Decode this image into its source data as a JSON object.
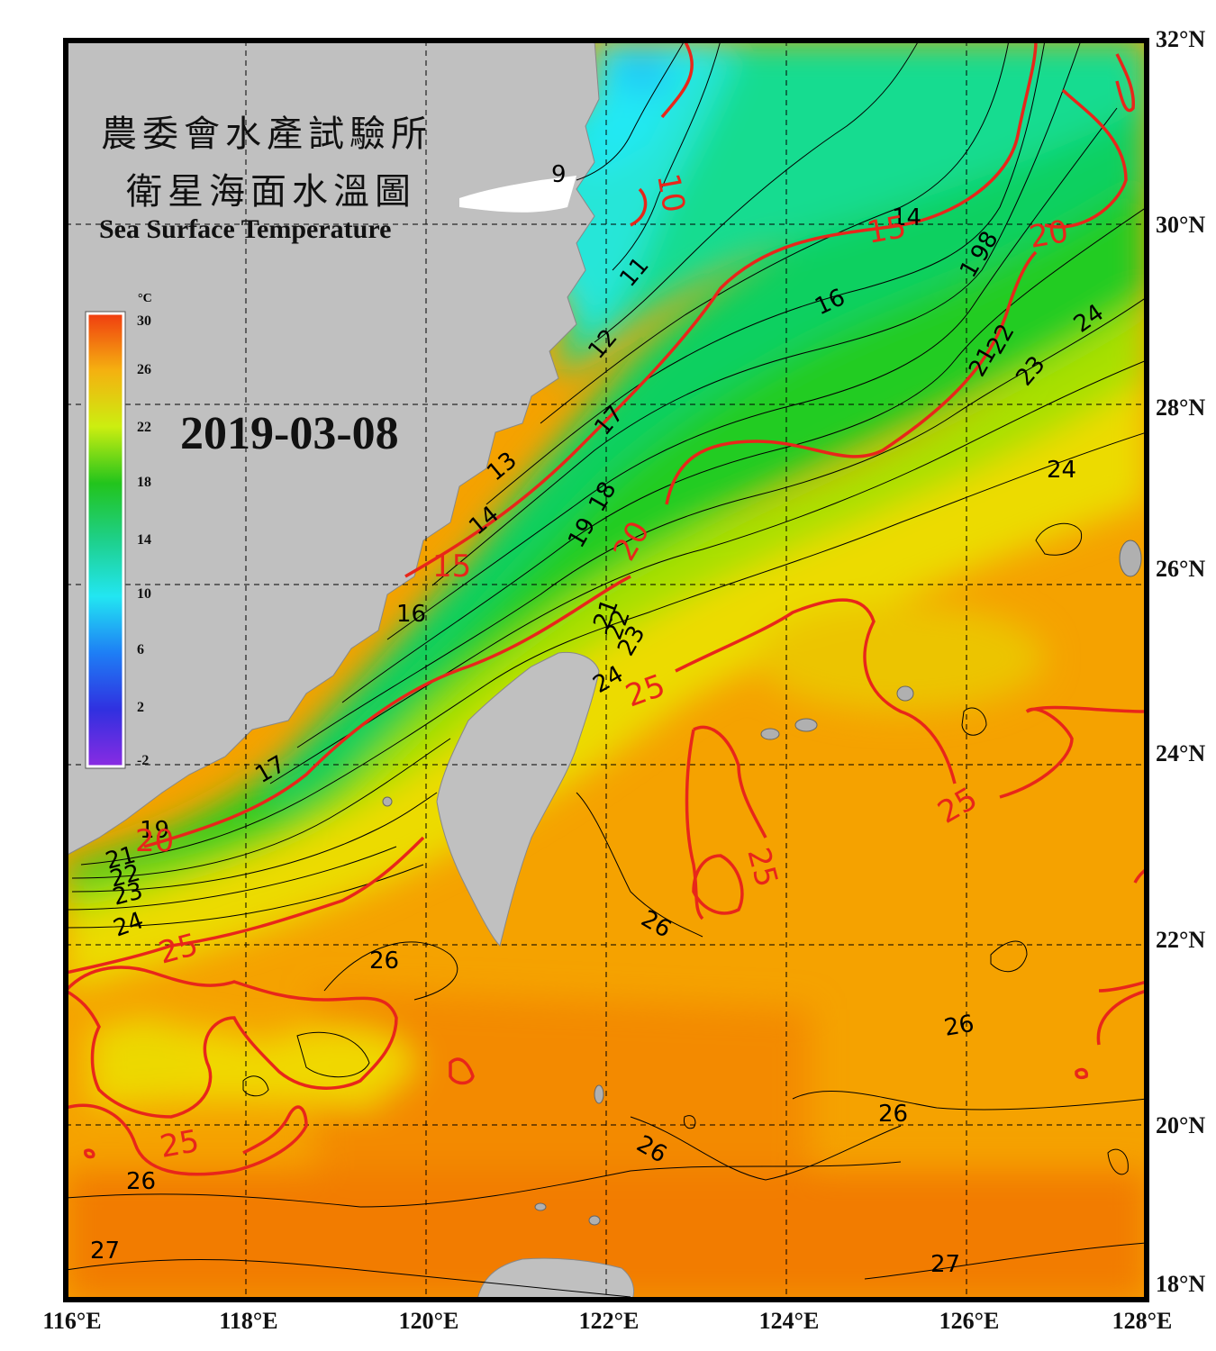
{
  "title": {
    "chinese_line1": "農委會水產試驗所",
    "chinese_line2": "衛星海面水溫圖",
    "english": "Sea Surface Temperature"
  },
  "date": "2019-03-08",
  "colorbar": {
    "unit": "°C",
    "ticks": [
      "30",
      "26",
      "22",
      "18",
      "14",
      "10",
      "6",
      "2",
      "-2"
    ],
    "min": -2,
    "max": 30
  },
  "axes": {
    "longitude_labels": [
      "116°E",
      "118°E",
      "120°E",
      "122°E",
      "124°E",
      "126°E",
      "128°E"
    ],
    "latitude_labels": [
      "32°N",
      "30°N",
      "28°N",
      "26°N",
      "24°N",
      "22°N",
      "20°N",
      "18°N"
    ],
    "lon_range": [
      116,
      128
    ],
    "lat_range": [
      18,
      32
    ],
    "grid": "dashed"
  },
  "contour_labels": {
    "black": [
      "9",
      "11",
      "12",
      "13",
      "14",
      "14",
      "16",
      "16",
      "17",
      "17",
      "18",
      "19",
      "19",
      "1",
      "98",
      "21",
      "21",
      "22",
      "22",
      "23",
      "23",
      "23",
      "24",
      "24",
      "24",
      "24",
      "26",
      "26",
      "26",
      "26",
      "26",
      "26",
      "27",
      "27",
      "21",
      "22"
    ],
    "red": [
      "10",
      "15",
      "15",
      "20",
      "20",
      "20",
      "25",
      "25",
      "25",
      "25",
      "25"
    ]
  },
  "colors": {
    "land": "#c0c0c0",
    "frame": "#000000",
    "red_contour": "#e8261a",
    "black_contour": "#000000",
    "cold": "#22e4f0",
    "green": "#1ccd1c",
    "yellow": "#e8f000",
    "orange": "#f5a000",
    "deep_orange": "#f07800"
  }
}
